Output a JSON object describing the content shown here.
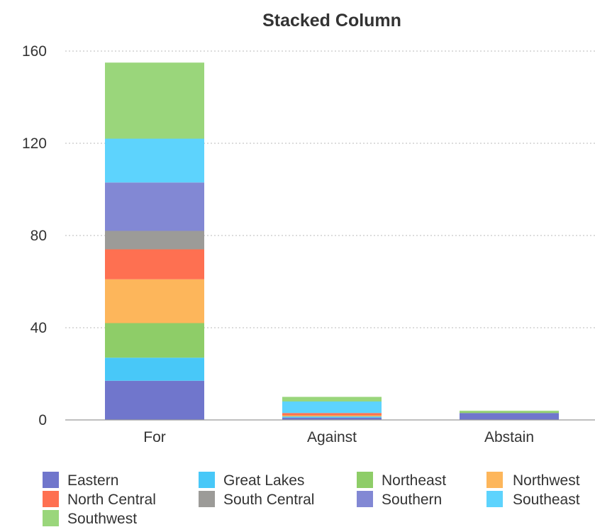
{
  "chart_data": {
    "type": "bar",
    "stacked": true,
    "title": "Stacked Column",
    "xlabel": "",
    "ylabel": "",
    "ylim": [
      0,
      160
    ],
    "yticks": [
      0,
      40,
      80,
      120,
      160
    ],
    "grid": true,
    "legend_position": "bottom",
    "categories": [
      "For",
      "Against",
      "Abstain"
    ],
    "series": [
      {
        "name": "Eastern",
        "color": "#7076cc",
        "values": [
          17,
          1,
          3
        ]
      },
      {
        "name": "Great Lakes",
        "color": "#48c8f8",
        "values": [
          10,
          0.5,
          0
        ]
      },
      {
        "name": "Northeast",
        "color": "#8ecd68",
        "values": [
          15,
          0,
          0.5
        ]
      },
      {
        "name": "Northwest",
        "color": "#fdb65b",
        "values": [
          19,
          0.5,
          0
        ]
      },
      {
        "name": "North Central",
        "color": "#fe7051",
        "values": [
          13,
          1,
          0
        ]
      },
      {
        "name": "South Central",
        "color": "#9c9b98",
        "values": [
          8,
          0,
          0
        ]
      },
      {
        "name": "Southern",
        "color": "#8288d4",
        "values": [
          21,
          0,
          0
        ]
      },
      {
        "name": "Southeast",
        "color": "#5dd3fd",
        "values": [
          19,
          5,
          0
        ]
      },
      {
        "name": "Southwest",
        "color": "#9ad67b",
        "values": [
          33,
          2,
          0.5
        ]
      }
    ]
  }
}
